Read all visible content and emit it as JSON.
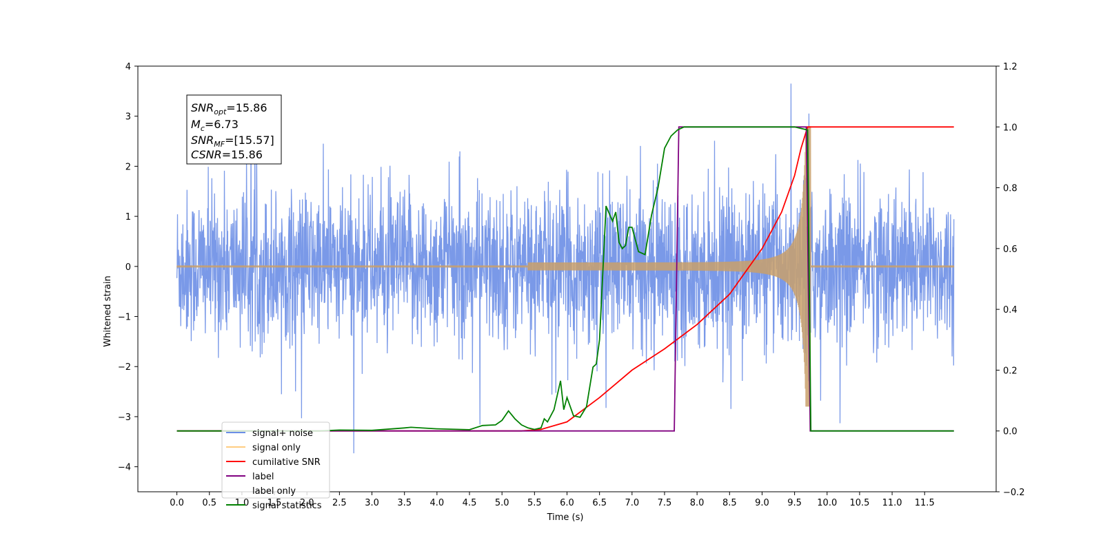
{
  "chart_data": {
    "type": "line",
    "xlabel": "Time (s)",
    "ylabel": "Whitened strain",
    "xlim": [
      -0.6,
      12.6
    ],
    "ylim": [
      -4.5,
      4.0
    ],
    "y2lim": [
      -0.2,
      1.2
    ],
    "x_ticks": [
      "0.0",
      "0.5",
      "1.0",
      "1.5",
      "2.0",
      "2.5",
      "3.0",
      "3.5",
      "4.0",
      "4.5",
      "5.0",
      "5.5",
      "6.0",
      "6.5",
      "7.0",
      "7.5",
      "8.0",
      "8.5",
      "9.0",
      "9.5",
      "10.0",
      "10.5",
      "11.0",
      "11.5"
    ],
    "y_ticks": [
      "4",
      "3",
      "2",
      "1",
      "0",
      "−1",
      "−2",
      "−3",
      "−4"
    ],
    "y2_ticks": [
      "1.2",
      "1.0",
      "0.8",
      "0.6",
      "0.4",
      "0.2",
      "0.0",
      "−0.2"
    ],
    "info_box": {
      "snr_opt_base": "SNR",
      "snr_opt_sub": "opt",
      "snr_opt_value": "=15.86",
      "mc_base": "M",
      "mc_sub": "c",
      "mc_value": "=6.73",
      "snr_mf_base": "SNR",
      "snr_mf_sub": "MF",
      "snr_mf_value": "=[15.57]",
      "csnr_base": "CSNR",
      "csnr_value": "=15.86"
    },
    "legend_position": "lower-left",
    "series": [
      {
        "name": "signal+ noise",
        "color": "#6b8ee6",
        "axis": "left",
        "description_values": "noise envelope approx ±1.3 std-like, spikes up to 3.6"
      },
      {
        "name": "signal only",
        "color": "#ffb347",
        "axis": "left",
        "chirp_start": 5.4,
        "merger": 9.7,
        "peak_amplitude": 2.8
      },
      {
        "name": "cumilative SNR",
        "color": "#ff0000",
        "axis": "right",
        "x": [
          0.0,
          5.3,
          5.6,
          6.0,
          6.5,
          7.0,
          7.5,
          8.0,
          8.5,
          9.0,
          9.3,
          9.5,
          9.6,
          9.7,
          11.95
        ],
        "y": [
          0.0,
          0.0,
          0.005,
          0.03,
          0.11,
          0.2,
          0.27,
          0.35,
          0.45,
          0.6,
          0.72,
          0.84,
          0.93,
          1.0,
          1.0
        ]
      },
      {
        "name": "label",
        "color": "#800080",
        "axis": "right",
        "x": [
          0.0,
          7.65,
          7.72,
          9.68,
          9.74,
          11.95
        ],
        "y": [
          0.0,
          0.0,
          1.0,
          1.0,
          0.0,
          0.0
        ]
      },
      {
        "name": "label only",
        "color": "#800080",
        "axis": "right",
        "hidden": true
      },
      {
        "name": "signal statistics",
        "color": "#008000",
        "axis": "right",
        "x": [
          0.0,
          2.2,
          2.5,
          3.0,
          3.5,
          3.6,
          4.0,
          4.5,
          4.7,
          4.9,
          5.0,
          5.1,
          5.2,
          5.3,
          5.4,
          5.5,
          5.6,
          5.65,
          5.7,
          5.8,
          5.9,
          5.95,
          6.0,
          6.1,
          6.2,
          6.3,
          6.4,
          6.45,
          6.5,
          6.6,
          6.7,
          6.75,
          6.8,
          6.85,
          6.9,
          6.95,
          7.0,
          7.1,
          7.2,
          7.3,
          7.4,
          7.5,
          7.6,
          7.7,
          7.8,
          8.0,
          9.5,
          9.7,
          9.75,
          11.95
        ],
        "y": [
          0.0,
          0.0,
          0.003,
          0.002,
          0.01,
          0.012,
          0.007,
          0.004,
          0.018,
          0.02,
          0.035,
          0.066,
          0.04,
          0.02,
          0.01,
          0.005,
          0.01,
          0.04,
          0.03,
          0.07,
          0.165,
          0.07,
          0.11,
          0.05,
          0.045,
          0.08,
          0.21,
          0.22,
          0.3,
          0.74,
          0.69,
          0.72,
          0.62,
          0.6,
          0.61,
          0.67,
          0.67,
          0.59,
          0.58,
          0.71,
          0.8,
          0.93,
          0.97,
          0.99,
          1.0,
          1.0,
          1.0,
          0.99,
          0.0,
          0.0
        ]
      }
    ]
  }
}
